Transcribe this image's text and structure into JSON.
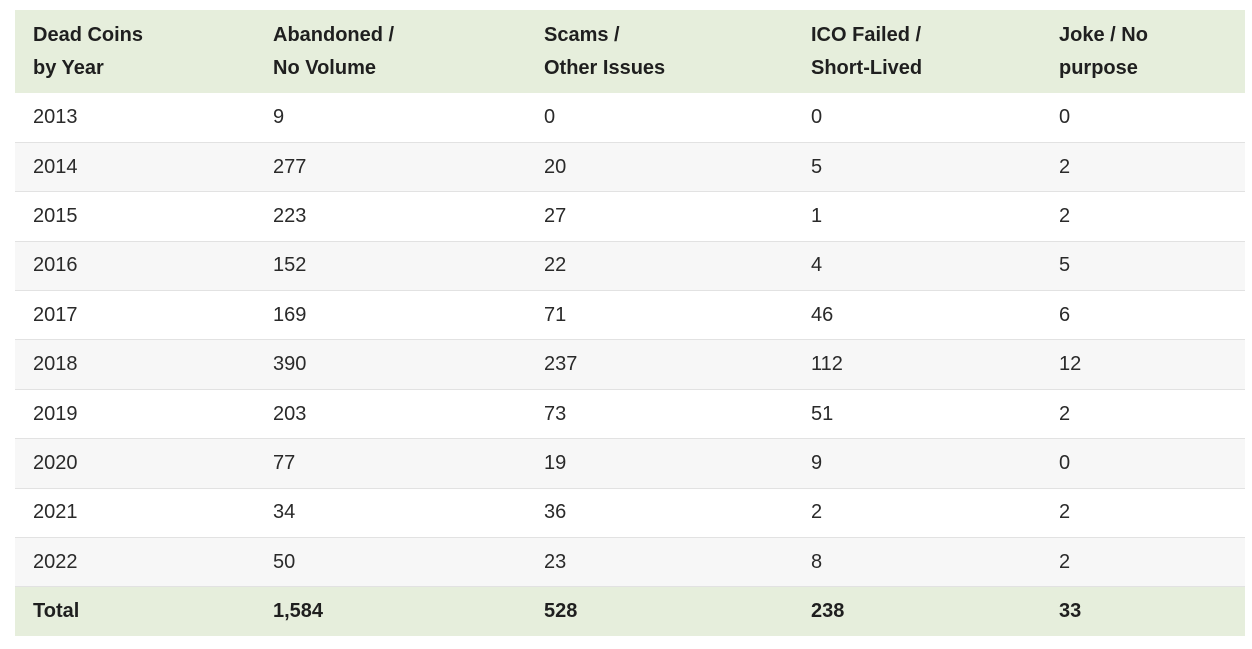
{
  "table": {
    "headers": [
      "Dead Coins\nby Year",
      "Abandoned /\nNo Volume",
      "Scams /\nOther Issues",
      "ICO Failed /\nShort-Lived",
      "Joke / No\npurpose"
    ],
    "rows": [
      [
        "2013",
        "9",
        "0",
        "0",
        "0"
      ],
      [
        "2014",
        "277",
        "20",
        "5",
        "2"
      ],
      [
        "2015",
        "223",
        "27",
        "1",
        "2"
      ],
      [
        "2016",
        "152",
        "22",
        "4",
        "5"
      ],
      [
        "2017",
        "169",
        "71",
        "46",
        "6"
      ],
      [
        "2018",
        "390",
        "237",
        "112",
        "12"
      ],
      [
        "2019",
        "203",
        "73",
        "51",
        "2"
      ],
      [
        "2020",
        "77",
        "19",
        "9",
        "0"
      ],
      [
        "2021",
        "34",
        "36",
        "2",
        "2"
      ],
      [
        "2022",
        "50",
        "23",
        "8",
        "2"
      ]
    ],
    "total": [
      "Total",
      "1,584",
      "528",
      "238",
      "33"
    ]
  },
  "colors": {
    "header_bg": "#e6eedc",
    "row_alt_bg": "#f7f7f7",
    "row_border": "#e2e2e2"
  }
}
